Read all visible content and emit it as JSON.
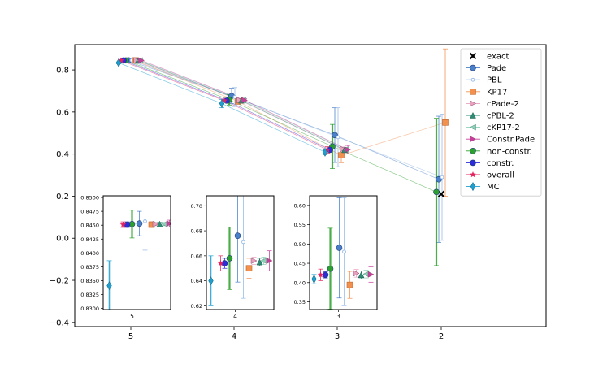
{
  "chart_data": [
    {
      "type": "scatter",
      "role": "main",
      "categories": [
        "5",
        "4",
        "3",
        "2"
      ],
      "ylim": [
        -0.42,
        0.92
      ],
      "yticks": [
        -0.4,
        -0.2,
        0.0,
        0.2,
        0.4,
        0.6,
        0.8
      ],
      "ytick_labels": [
        "−0.4",
        "−0.2",
        "0.0",
        "0.2",
        "0.4",
        "0.6",
        "0.8"
      ],
      "legend_position": "upper-right",
      "series": [
        {
          "name": "exact",
          "marker": "x",
          "color": "#000000",
          "points": [
            {
              "x": "2",
              "y": 0.21
            }
          ]
        },
        {
          "name": "Pade",
          "marker": "o",
          "color": "#4a7fc9",
          "points": [
            {
              "x": "5",
              "y": 0.8453,
              "err": 0.0022
            },
            {
              "x": "4",
              "y": 0.676,
              "err": 0.037
            },
            {
              "x": "3",
              "y": 0.49,
              "err": 0.13
            },
            {
              "x": "2",
              "y": 0.28,
              "err": 0.3
            }
          ]
        },
        {
          "name": "PBL",
          "marker": "small-o",
          "color": "#93b8e6",
          "points": [
            {
              "x": "5",
              "y": 0.8457,
              "err": 0.0052
            },
            {
              "x": "4",
              "y": 0.671,
              "err": 0.045
            },
            {
              "x": "3",
              "y": 0.48,
              "err": 0.14
            },
            {
              "x": "2",
              "y": 0.29,
              "err": 0.3
            }
          ]
        },
        {
          "name": "KP17",
          "marker": "s",
          "color": "#f2904e",
          "points": [
            {
              "x": "5",
              "y": 0.8451,
              "err": 0.0005
            },
            {
              "x": "4",
              "y": 0.65,
              "err": 0.008
            },
            {
              "x": "3",
              "y": 0.394,
              "err": 0.035
            },
            {
              "x": "2",
              "y": 0.55,
              "err": 0.35
            }
          ]
        },
        {
          "name": "cPade-2",
          "marker": "tri-right",
          "color": "#e8a0bf",
          "points": [
            {
              "x": "5",
              "y": 0.8452,
              "err": 0.0003
            },
            {
              "x": "4",
              "y": 0.656,
              "err": 0.003
            },
            {
              "x": "3",
              "y": 0.424,
              "err": 0.01
            }
          ]
        },
        {
          "name": "cPBL-2",
          "marker": "tri-up",
          "color": "#2e8b74",
          "points": [
            {
              "x": "5",
              "y": 0.8452,
              "err": 0.0003
            },
            {
              "x": "4",
              "y": 0.655,
              "err": 0.003
            },
            {
              "x": "3",
              "y": 0.42,
              "err": 0.01
            }
          ]
        },
        {
          "name": "cKP17-2",
          "marker": "tri-left",
          "color": "#8fd0b8",
          "points": [
            {
              "x": "5",
              "y": 0.8452,
              "err": 0.0003
            },
            {
              "x": "4",
              "y": 0.656,
              "err": 0.003
            },
            {
              "x": "3",
              "y": 0.422,
              "err": 0.01
            }
          ]
        },
        {
          "name": "Constr.Pade",
          "marker": "tri-right",
          "color": "#c83c9c",
          "points": [
            {
              "x": "5",
              "y": 0.8453,
              "err": 0.0006
            },
            {
              "x": "4",
              "y": 0.656,
              "err": 0.008
            },
            {
              "x": "3",
              "y": 0.421,
              "err": 0.02
            }
          ]
        },
        {
          "name": "non-constr.",
          "marker": "o",
          "color": "#2ca02c",
          "points": [
            {
              "x": "5",
              "y": 0.8452,
              "err": 0.0025
            },
            {
              "x": "4",
              "y": 0.658,
              "err": 0.025
            },
            {
              "x": "3",
              "y": 0.436,
              "err": 0.105
            },
            {
              "x": "2",
              "y": 0.22,
              "err": 0.35
            }
          ]
        },
        {
          "name": "constr.",
          "marker": "o",
          "color": "#2c2cd8",
          "points": [
            {
              "x": "5",
              "y": 0.8451,
              "err": 0.0005
            },
            {
              "x": "4",
              "y": 0.654,
              "err": 0.004
            },
            {
              "x": "3",
              "y": 0.42,
              "err": 0.008
            }
          ]
        },
        {
          "name": "overall",
          "marker": "star",
          "color": "#e4245e",
          "points": [
            {
              "x": "5",
              "y": 0.8451,
              "err": 0.0005
            },
            {
              "x": "4",
              "y": 0.654,
              "err": 0.006
            },
            {
              "x": "3",
              "y": 0.42,
              "err": 0.015
            }
          ]
        },
        {
          "name": "MC",
          "marker": "d",
          "color": "#1f9fd0",
          "points": [
            {
              "x": "5",
              "y": 0.8341,
              "err": 0.0045
            },
            {
              "x": "4",
              "y": 0.64,
              "err": 0.02
            },
            {
              "x": "3",
              "y": 0.409,
              "err": 0.012
            }
          ]
        }
      ]
    },
    {
      "type": "scatter",
      "role": "inset",
      "category": "5",
      "ylim": [
        0.8298,
        0.8503
      ],
      "yticks": [
        0.83,
        0.8325,
        0.835,
        0.8375,
        0.84,
        0.8425,
        0.845,
        0.8475,
        0.85
      ],
      "ytick_labels": [
        "0.8300",
        "0.8325",
        "0.8350",
        "0.8375",
        "0.8400",
        "0.8425",
        "0.8450",
        "0.8475",
        "0.8500"
      ],
      "xtick_label": "5"
    },
    {
      "type": "scatter",
      "role": "inset",
      "category": "4",
      "ylim": [
        0.617,
        0.708
      ],
      "yticks": [
        0.62,
        0.64,
        0.66,
        0.68,
        0.7
      ],
      "ytick_labels": [
        "0.62",
        "0.64",
        "0.66",
        "0.68",
        "0.70"
      ],
      "xtick_label": "4"
    },
    {
      "type": "scatter",
      "role": "inset",
      "category": "3",
      "ylim": [
        0.33,
        0.625
      ],
      "yticks": [
        0.35,
        0.4,
        0.45,
        0.5,
        0.55,
        0.6
      ],
      "ytick_labels": [
        "0.35",
        "0.40",
        "0.45",
        "0.50",
        "0.55",
        "0.60"
      ],
      "xtick_label": "3"
    }
  ]
}
